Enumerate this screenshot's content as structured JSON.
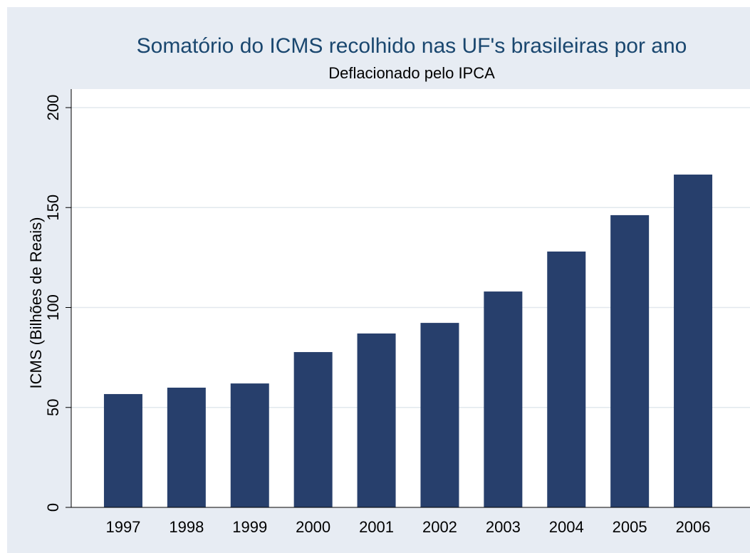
{
  "chart_data": {
    "type": "bar",
    "title": "Somatório do ICMS recolhido nas UF's brasileiras por ano",
    "subtitle": "Deflacionado pelo IPCA",
    "y_label": "ICMS (Bilhões de Reais)",
    "categories": [
      "1997",
      "1998",
      "1999",
      "2000",
      "2001",
      "2002",
      "2003",
      "2004",
      "2005",
      "2006"
    ],
    "values": [
      56.7,
      59.9,
      62.0,
      77.7,
      87.0,
      92.3,
      108.0,
      128.0,
      146.2,
      166.5
    ],
    "color": "#273f6c",
    "ylim": [
      0,
      200
    ],
    "yticks": [
      0,
      50,
      100,
      150,
      200
    ],
    "grid": true
  }
}
